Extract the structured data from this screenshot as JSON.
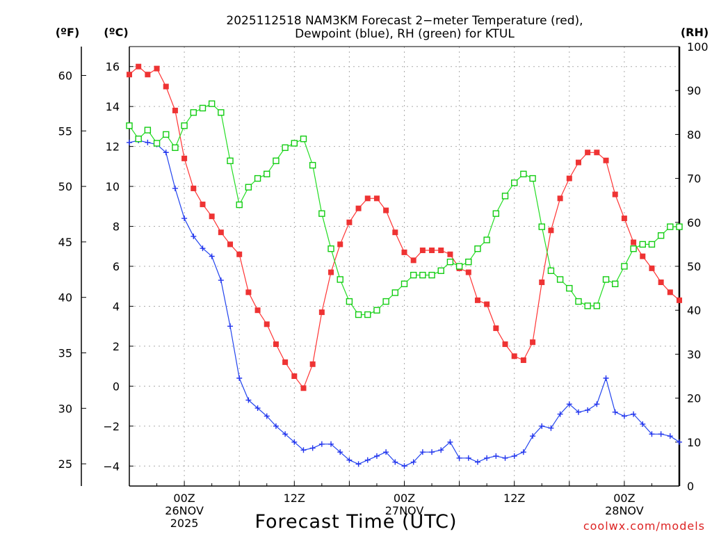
{
  "chart_data": {
    "type": "line",
    "title_line1": "2025112518 NAM3KM Forecast 2−meter Temperature (red),",
    "title_line2": "Dewpoint (blue), RH (green) for KTUL",
    "xlabel": "Forecast Time (UTC)",
    "unit_f": "(ºF)",
    "unit_c": "(ºC)",
    "unit_rh": "(RH)",
    "watermark": "coolwx.com/models",
    "xlim": [
      -6,
      54
    ],
    "ylim_c": [
      -5,
      17
    ],
    "ylim_rh": [
      0,
      100
    ],
    "f_ticks": [
      25,
      30,
      35,
      40,
      45,
      50,
      55,
      60
    ],
    "c_ticks": [
      -4,
      -2,
      0,
      2,
      4,
      6,
      8,
      10,
      12,
      14,
      16
    ],
    "c_tick_labels": [
      "−4",
      "−2",
      "0",
      "2",
      "4",
      "6",
      "8",
      "10",
      "12",
      "14",
      "16"
    ],
    "rh_ticks": [
      0,
      10,
      20,
      30,
      40,
      50,
      60,
      70,
      80,
      90,
      100
    ],
    "x_ticks": [
      {
        "hour": 0,
        "lines": [
          "00Z",
          "26NOV",
          "2025"
        ]
      },
      {
        "hour": 12,
        "lines": [
          "12Z"
        ]
      },
      {
        "hour": 24,
        "lines": [
          "00Z",
          "27NOV"
        ]
      },
      {
        "hour": 36,
        "lines": [
          "12Z"
        ]
      },
      {
        "hour": 48,
        "lines": [
          "00Z",
          "28NOV"
        ]
      }
    ],
    "start_hour": -6,
    "series": [
      {
        "name": "Temperature (°C)",
        "color": "#ff0000",
        "marker": "filled-square",
        "axis": "c",
        "values": [
          15.6,
          16.0,
          15.6,
          15.9,
          15.0,
          13.8,
          11.4,
          9.9,
          9.1,
          8.5,
          7.7,
          7.1,
          6.6,
          4.7,
          3.8,
          3.1,
          2.1,
          1.2,
          0.5,
          -0.1,
          1.1,
          3.7,
          5.7,
          7.1,
          8.2,
          8.9,
          9.4,
          9.4,
          8.8,
          7.7,
          6.7,
          6.3,
          6.8,
          6.8,
          6.8,
          6.6,
          5.9,
          5.7,
          4.3,
          4.1,
          2.9,
          2.1,
          1.5,
          1.3,
          2.2,
          5.2,
          7.8,
          9.4,
          10.4,
          11.2,
          11.7,
          11.7,
          11.3,
          9.6,
          8.4,
          7.2,
          6.5,
          5.9,
          5.2,
          4.7,
          4.3
        ]
      },
      {
        "name": "Dewpoint (°C)",
        "color": "#0000ff",
        "marker": "plus",
        "axis": "c",
        "values": [
          12.2,
          12.3,
          12.2,
          12.1,
          11.7,
          9.9,
          8.4,
          7.5,
          6.9,
          6.5,
          5.3,
          3.0,
          0.4,
          -0.7,
          -1.1,
          -1.5,
          -2.0,
          -2.4,
          -2.8,
          -3.2,
          -3.1,
          -2.9,
          -2.9,
          -3.3,
          -3.7,
          -3.9,
          -3.7,
          -3.5,
          -3.3,
          -3.8,
          -4.0,
          -3.8,
          -3.3,
          -3.3,
          -3.2,
          -2.8,
          -3.6,
          -3.6,
          -3.8,
          -3.6,
          -3.5,
          -3.6,
          -3.5,
          -3.3,
          -2.5,
          -2.0,
          -2.1,
          -1.4,
          -0.9,
          -1.3,
          -1.2,
          -0.9,
          0.4,
          -1.3,
          -1.5,
          -1.4,
          -1.9,
          -2.4,
          -2.4,
          -2.5,
          -2.8
        ]
      },
      {
        "name": "RH (%)",
        "color": "#00ee00",
        "marker": "open-square",
        "axis": "rh",
        "values": [
          82,
          79,
          81,
          78,
          80,
          77,
          82,
          85,
          86,
          87,
          85,
          74,
          64,
          68,
          70,
          71,
          74,
          77,
          78,
          79,
          73,
          62,
          54,
          47,
          42,
          39,
          39,
          40,
          42,
          44,
          46,
          48,
          48,
          48,
          49,
          51,
          50,
          51,
          54,
          56,
          62,
          66,
          69,
          71,
          70,
          59,
          49,
          47,
          45,
          42,
          41,
          41,
          47,
          46,
          50,
          54,
          55,
          55,
          57,
          59,
          59
        ]
      }
    ]
  }
}
